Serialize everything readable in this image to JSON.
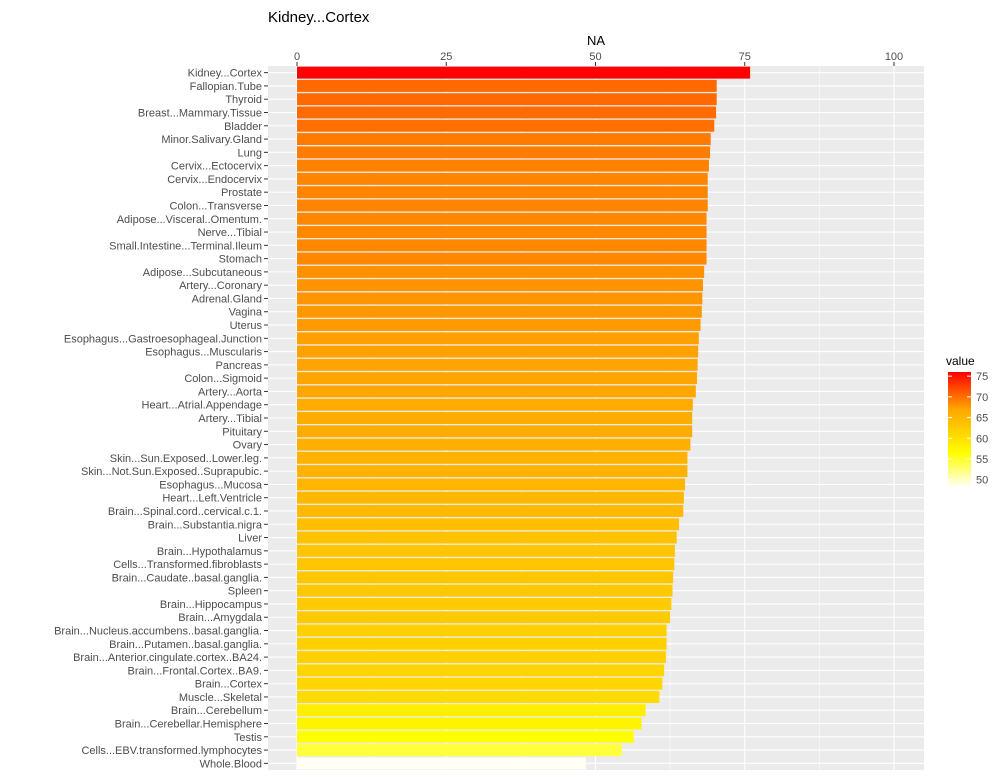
{
  "chart_data": {
    "type": "bar",
    "orientation": "horizontal",
    "title": "Kidney...Cortex",
    "xlabel": "NA",
    "ylabel": "",
    "xlim": [
      0,
      105
    ],
    "xticks": [
      0,
      25,
      50,
      75,
      100
    ],
    "grid": true,
    "legend": {
      "title": "value",
      "position": "right",
      "ticks": [
        75,
        70,
        65,
        60,
        55,
        50
      ],
      "range": [
        48,
        76
      ]
    },
    "colors": {
      "high": "#ff0000",
      "mid_high": "#ffa500",
      "mid": "#ffff00",
      "low": "#ffffff",
      "panel": "#ebebeb",
      "grid": "#ffffff"
    },
    "categories": [
      "Kidney...Cortex",
      "Fallopian.Tube",
      "Thyroid",
      "Breast...Mammary.Tissue",
      "Bladder",
      "Minor.Salivary.Gland",
      "Lung",
      "Cervix...Ectocervix",
      "Cervix...Endocervix",
      "Prostate",
      "Colon...Transverse",
      "Adipose...Visceral..Omentum.",
      "Nerve...Tibial",
      "Small.Intestine...Terminal.Ileum",
      "Stomach",
      "Adipose...Subcutaneous",
      "Artery...Coronary",
      "Adrenal.Gland",
      "Vagina",
      "Uterus",
      "Esophagus...Gastroesophageal.Junction",
      "Esophagus...Muscularis",
      "Pancreas",
      "Colon...Sigmoid",
      "Artery...Aorta",
      "Heart...Atrial.Appendage",
      "Artery...Tibial",
      "Pituitary",
      "Ovary",
      "Skin...Sun.Exposed..Lower.leg.",
      "Skin...Not.Sun.Exposed..Suprapubic.",
      "Esophagus...Mucosa",
      "Heart...Left.Ventricle",
      "Brain...Spinal.cord..cervical.c.1.",
      "Brain...Substantia.nigra",
      "Liver",
      "Brain...Hypothalamus",
      "Cells...Transformed.fibroblasts",
      "Brain...Caudate..basal.ganglia.",
      "Spleen",
      "Brain...Hippocampus",
      "Brain...Amygdala",
      "Brain...Nucleus.accumbens..basal.ganglia.",
      "Brain...Putamen..basal.ganglia.",
      "Brain...Anterior.cingulate.cortex..BA24.",
      "Brain...Frontal.Cortex..BA9.",
      "Brain...Cortex",
      "Muscle...Skeletal",
      "Brain...Cerebellum",
      "Brain...Cerebellar.Hemisphere",
      "Testis",
      "Cells...EBV.transformed.lymphocytes",
      "Whole.Blood"
    ],
    "values": [
      75.9,
      70.3,
      70.3,
      70.2,
      69.9,
      69.3,
      69.2,
      69.0,
      68.8,
      68.8,
      68.8,
      68.6,
      68.6,
      68.6,
      68.6,
      68.2,
      68.0,
      67.9,
      67.8,
      67.6,
      67.3,
      67.2,
      67.1,
      67.0,
      66.8,
      66.3,
      66.2,
      66.2,
      65.9,
      65.4,
      65.4,
      65.0,
      64.8,
      64.7,
      64.0,
      63.6,
      63.3,
      63.2,
      63.0,
      62.9,
      62.7,
      62.5,
      61.9,
      61.9,
      61.8,
      61.5,
      61.2,
      60.7,
      58.4,
      57.7,
      56.4,
      54.4,
      48.4
    ]
  }
}
